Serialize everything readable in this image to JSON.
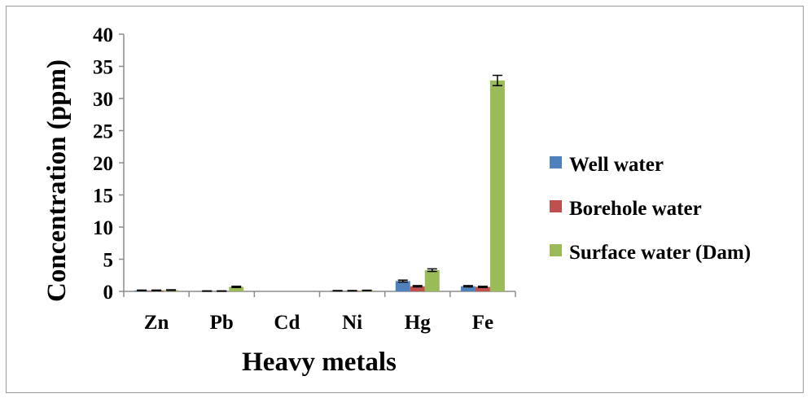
{
  "chart_data": {
    "type": "bar",
    "categories": [
      "Zn",
      "Pb",
      "Cd",
      "Ni",
      "Hg",
      "Fe"
    ],
    "series": [
      {
        "name": "Well water",
        "color": "#4f81bd",
        "values": [
          0.15,
          0.05,
          0.0,
          0.1,
          1.6,
          0.8
        ],
        "errors": [
          0.05,
          0.03,
          0.0,
          0.03,
          0.15,
          0.1
        ]
      },
      {
        "name": "Borehole water",
        "color": "#c0504d",
        "values": [
          0.15,
          0.05,
          0.0,
          0.1,
          0.8,
          0.7
        ],
        "errors": [
          0.05,
          0.03,
          0.0,
          0.03,
          0.1,
          0.1
        ]
      },
      {
        "name": "Surface water (Dam)",
        "color": "#9bbb59",
        "values": [
          0.2,
          0.7,
          0.0,
          0.15,
          3.3,
          32.8
        ],
        "errors": [
          0.05,
          0.1,
          0.0,
          0.03,
          0.2,
          0.8
        ]
      }
    ],
    "title": "",
    "xlabel": "Heavy metals",
    "ylabel": "Concentration (ppm)",
    "ylim": [
      0,
      40
    ],
    "yticks": [
      0,
      5,
      10,
      15,
      20,
      25,
      30,
      35,
      40
    ],
    "grid": false,
    "legend_position": "right"
  }
}
